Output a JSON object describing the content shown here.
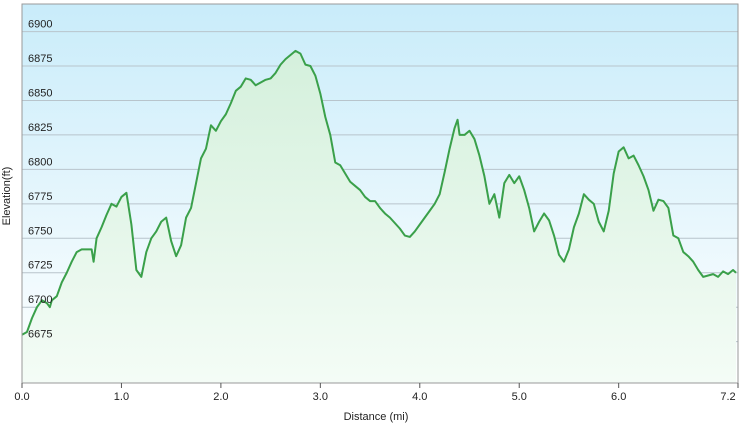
{
  "chart_data": {
    "type": "area",
    "ylabel": "Elevation(ft)",
    "xlabel": "Distance  (mi)",
    "x": [
      0.0,
      0.05,
      0.1,
      0.15,
      0.2,
      0.25,
      0.28,
      0.3,
      0.35,
      0.4,
      0.45,
      0.5,
      0.55,
      0.6,
      0.65,
      0.7,
      0.72,
      0.75,
      0.8,
      0.85,
      0.9,
      0.95,
      1.0,
      1.05,
      1.1,
      1.15,
      1.2,
      1.25,
      1.3,
      1.35,
      1.4,
      1.45,
      1.5,
      1.55,
      1.6,
      1.65,
      1.7,
      1.75,
      1.8,
      1.85,
      1.9,
      1.95,
      2.0,
      2.05,
      2.1,
      2.15,
      2.2,
      2.25,
      2.3,
      2.35,
      2.4,
      2.45,
      2.5,
      2.55,
      2.6,
      2.65,
      2.7,
      2.75,
      2.8,
      2.85,
      2.9,
      2.95,
      3.0,
      3.05,
      3.1,
      3.15,
      3.2,
      3.25,
      3.3,
      3.35,
      3.4,
      3.45,
      3.5,
      3.55,
      3.6,
      3.65,
      3.7,
      3.75,
      3.8,
      3.85,
      3.9,
      3.95,
      4.0,
      4.05,
      4.1,
      4.15,
      4.2,
      4.25,
      4.3,
      4.35,
      4.38,
      4.4,
      4.45,
      4.5,
      4.55,
      4.6,
      4.65,
      4.7,
      4.75,
      4.8,
      4.85,
      4.9,
      4.95,
      5.0,
      5.05,
      5.1,
      5.15,
      5.2,
      5.25,
      5.3,
      5.35,
      5.4,
      5.45,
      5.5,
      5.55,
      5.6,
      5.65,
      5.7,
      5.75,
      5.8,
      5.85,
      5.9,
      5.95,
      6.0,
      6.05,
      6.1,
      6.15,
      6.2,
      6.25,
      6.3,
      6.35,
      6.4,
      6.45,
      6.5,
      6.55,
      6.6,
      6.65,
      6.7,
      6.75,
      6.8,
      6.85,
      6.9,
      6.95,
      7.0,
      7.05,
      7.1,
      7.15,
      7.18
    ],
    "series": [
      {
        "name": "Elevation",
        "color": "#3aa04a",
        "values": [
          6680,
          6682,
          6692,
          6700,
          6705,
          6703,
          6700,
          6705,
          6708,
          6718,
          6725,
          6733,
          6740,
          6742,
          6742,
          6742,
          6733,
          6750,
          6758,
          6767,
          6775,
          6773,
          6780,
          6783,
          6760,
          6727,
          6722,
          6740,
          6750,
          6755,
          6762,
          6765,
          6748,
          6737,
          6745,
          6765,
          6772,
          6790,
          6808,
          6815,
          6832,
          6828,
          6835,
          6840,
          6848,
          6857,
          6860,
          6866,
          6865,
          6861,
          6863,
          6865,
          6866,
          6870,
          6876,
          6880,
          6883,
          6886,
          6884,
          6876,
          6875,
          6868,
          6855,
          6838,
          6825,
          6805,
          6803,
          6797,
          6791,
          6788,
          6785,
          6780,
          6777,
          6777,
          6772,
          6768,
          6765,
          6761,
          6757,
          6752,
          6751,
          6755,
          6760,
          6765,
          6770,
          6775,
          6782,
          6798,
          6815,
          6830,
          6836,
          6825,
          6825,
          6828,
          6822,
          6810,
          6795,
          6775,
          6782,
          6765,
          6790,
          6796,
          6790,
          6795,
          6785,
          6772,
          6755,
          6762,
          6768,
          6763,
          6752,
          6738,
          6733,
          6742,
          6758,
          6768,
          6782,
          6778,
          6775,
          6762,
          6755,
          6770,
          6797,
          6813,
          6816,
          6808,
          6810,
          6803,
          6795,
          6785,
          6770,
          6778,
          6777,
          6772,
          6752,
          6750,
          6740,
          6737,
          6733,
          6727,
          6722,
          6723,
          6724,
          6722,
          6726,
          6724,
          6727,
          6725
        ]
      }
    ],
    "xlim": [
      0,
      7.2
    ],
    "ylim": [
      6645,
      6920
    ],
    "xticks": [
      {
        "value": 0,
        "label": "0.0"
      },
      {
        "value": 1,
        "label": "1.0"
      },
      {
        "value": 2,
        "label": "2.0"
      },
      {
        "value": 3,
        "label": "3.0"
      },
      {
        "value": 4,
        "label": "4.0"
      },
      {
        "value": 5,
        "label": "5.0"
      },
      {
        "value": 6,
        "label": "6.0"
      },
      7.2
    ],
    "yticks": [
      6675,
      6700,
      6725,
      6750,
      6775,
      6800,
      6825,
      6850,
      6875,
      6900
    ],
    "grid": true
  }
}
